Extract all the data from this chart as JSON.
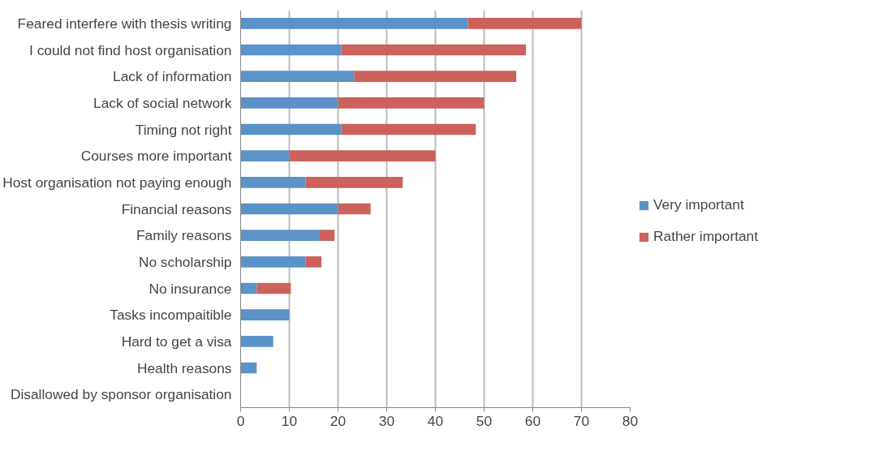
{
  "chart_data": {
    "type": "bar",
    "orientation": "horizontal",
    "stacked": true,
    "categories": [
      "Feared interfere with thesis writing",
      "I could not find host organisation",
      "Lack of information",
      "Lack of social network",
      "Timing not right",
      "Courses more important",
      "Host organisation not paying enough",
      "Financial reasons",
      "Family reasons",
      "No scholarship",
      "No insurance",
      "Tasks incompaitible",
      "Hard to get a visa",
      "Health reasons",
      "Disallowed by sponsor organisation"
    ],
    "series": [
      {
        "name": "Very important",
        "color": "#5b93c8",
        "values": [
          46.7,
          20.7,
          23.3,
          20,
          20.7,
          10,
          13.3,
          20,
          16.1,
          13.3,
          3.3,
          10,
          6.7,
          3.3,
          0
        ]
      },
      {
        "name": "Rather important",
        "color": "#cc625b",
        "values": [
          23.3,
          37.9,
          33.3,
          30,
          27.6,
          30,
          20,
          6.7,
          3.2,
          3.3,
          7,
          0,
          0,
          0,
          0
        ]
      }
    ],
    "xlim": [
      0,
      80
    ],
    "xticks": [
      0,
      10,
      20,
      30,
      40,
      50,
      60,
      70,
      80
    ],
    "grid": "x",
    "legend": "right"
  }
}
